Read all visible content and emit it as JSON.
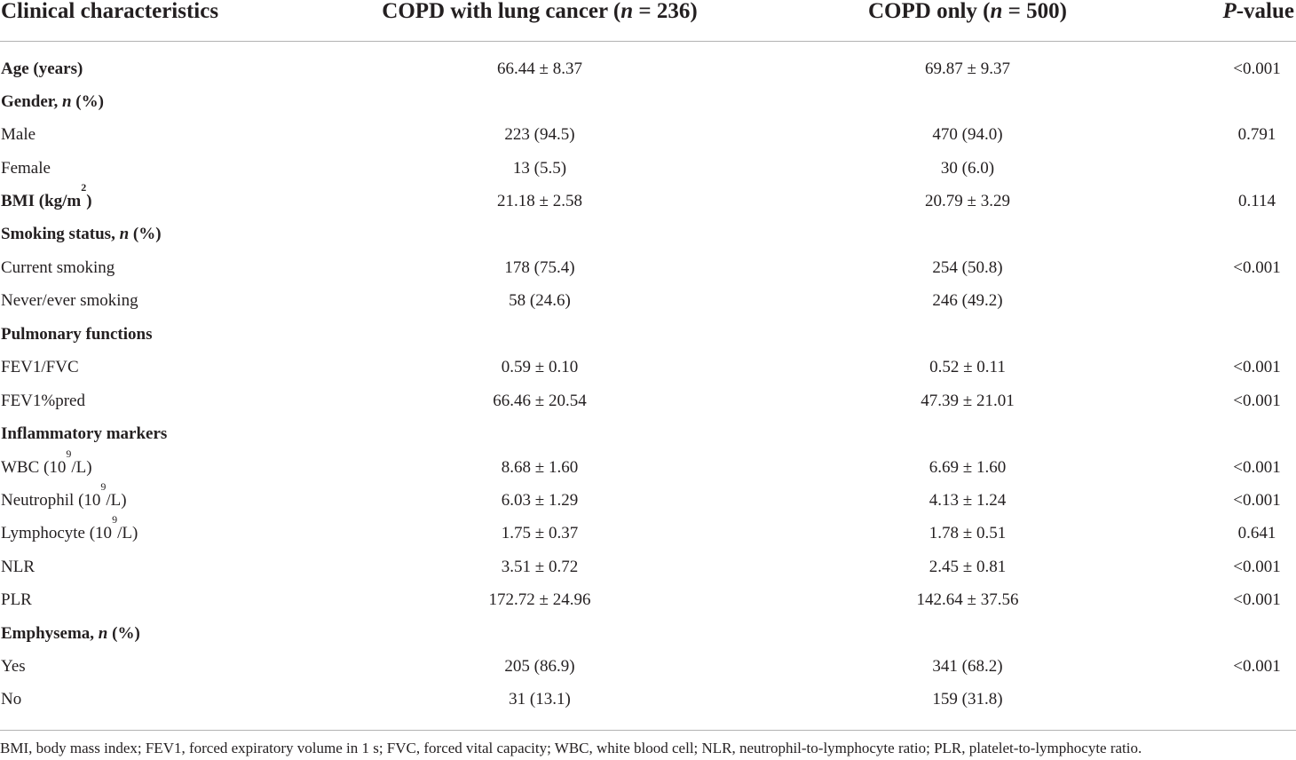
{
  "header": {
    "col0": "Clinical characteristics",
    "col1_pre": "COPD with lung cancer (",
    "col1_n": "n",
    "col1_post": " = 236)",
    "col2_pre": "COPD only (",
    "col2_n": "n",
    "col2_post": " = 500)",
    "col3_p": "P",
    "col3_post": "-value"
  },
  "rows": [
    {
      "label": "Age (years)",
      "v1": "66.44 ± 8.37",
      "v2": "69.87 ± 9.37",
      "p": "<0.001"
    },
    {
      "label_pre": "Gender, ",
      "label_it": "n",
      "label_post": " (%)"
    },
    {
      "label": "Male",
      "v1": "223 (94.5)",
      "v2": "470 (94.0)",
      "p": "0.791"
    },
    {
      "label": "Female",
      "v1": "13 (5.5)",
      "v2": "30 (6.0)",
      "p": ""
    },
    {
      "label_pre": "BMI (kg/m",
      "label_sup": "2",
      "label_post": ")",
      "v1": "21.18 ± 2.58",
      "v2": "20.79 ± 3.29",
      "p": "0.114"
    },
    {
      "label_pre": "Smoking status, ",
      "label_it": "n",
      "label_post": " (%)"
    },
    {
      "label": "Current smoking",
      "v1": "178 (75.4)",
      "v2": "254 (50.8)",
      "p": "<0.001"
    },
    {
      "label": "Never/ever smoking",
      "v1": "58 (24.6)",
      "v2": "246 (49.2)",
      "p": ""
    },
    {
      "label": "Pulmonary functions"
    },
    {
      "label": "FEV1/FVC",
      "v1": "0.59 ± 0.10",
      "v2": "0.52 ± 0.11",
      "p": "<0.001"
    },
    {
      "label": "FEV1%pred",
      "v1": "66.46 ± 20.54",
      "v2": "47.39 ± 21.01",
      "p": "<0.001"
    },
    {
      "label": "Inflammatory markers"
    },
    {
      "label_pre": "WBC (10",
      "label_sup": "9",
      "label_post": "/L)",
      "v1": "8.68 ± 1.60",
      "v2": "6.69 ± 1.60",
      "p": "<0.001"
    },
    {
      "label_pre": "Neutrophil (10",
      "label_sup": "9",
      "label_post": "/L)",
      "v1": "6.03 ± 1.29",
      "v2": "4.13 ± 1.24",
      "p": "<0.001"
    },
    {
      "label_pre": "Lymphocyte (10",
      "label_sup": "9",
      "label_post": "/L)",
      "v1": "1.75 ± 0.37",
      "v2": "1.78 ± 0.51",
      "p": "0.641"
    },
    {
      "label": "NLR",
      "v1": "3.51 ± 0.72",
      "v2": "2.45 ± 0.81",
      "p": "<0.001"
    },
    {
      "label": "PLR",
      "v1": "172.72 ± 24.96",
      "v2": "142.64 ± 37.56",
      "p": "<0.001"
    },
    {
      "label_pre": "Emphysema, ",
      "label_it": "n",
      "label_post": " (%)"
    },
    {
      "label": "Yes",
      "v1": "205 (86.9)",
      "v2": "341 (68.2)",
      "p": "<0.001"
    },
    {
      "label": "No",
      "v1": "31 (13.1)",
      "v2": "159 (31.8)",
      "p": ""
    }
  ],
  "footnote": "BMI, body mass index; FEV1, forced expiratory volume in 1 s; FVC, forced vital capacity; WBC, white blood cell; NLR, neutrophil-to-lymphocyte ratio; PLR, platelet-to-lymphocyte ratio."
}
